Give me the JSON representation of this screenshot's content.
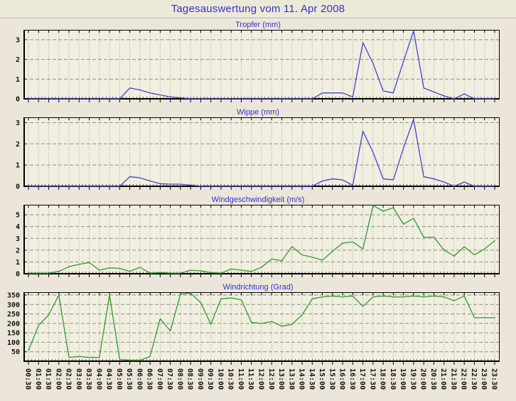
{
  "page_title": "Tagesauswertung vom 11. Apr 2008",
  "colors": {
    "page_bg": "#ebe6d9",
    "header_bg": "#ece9d8",
    "plot_bg": "#f1efe0",
    "title_blue": "#3333cc",
    "line_blue": "#4343c8",
    "line_green": "#2f9b2f",
    "grid_h": "#8f8f87",
    "grid_v": "#a5a29a",
    "axis": "#000000"
  },
  "time_labels": [
    "00:30",
    "01:00",
    "01:30",
    "02:00",
    "02:30",
    "03:00",
    "03:30",
    "04:00",
    "04:30",
    "05:00",
    "05:30",
    "06:00",
    "06:30",
    "07:00",
    "07:30",
    "08:00",
    "08:30",
    "09:00",
    "09:30",
    "10:00",
    "10:30",
    "11:00",
    "11:30",
    "12:00",
    "12:30",
    "13:00",
    "13:30",
    "14:00",
    "14:30",
    "15:00",
    "15:30",
    "16:00",
    "16:30",
    "17:00",
    "17:30",
    "18:00",
    "18:30",
    "19:00",
    "19:30",
    "20:00",
    "20:30",
    "21:00",
    "21:30",
    "22:00",
    "22:30",
    "23:00",
    "23:30"
  ],
  "chart_data": [
    {
      "id": "tropfer",
      "type": "line",
      "title": "Tropfer (mm)",
      "ylabel": "mm",
      "color": "#4343c8",
      "ylim": [
        0,
        3.5
      ],
      "yticks": [
        0,
        1,
        2,
        3
      ],
      "grid": true,
      "x_labels_ref": "time_labels",
      "values": [
        0,
        0,
        0,
        0,
        0,
        0,
        0,
        0,
        0,
        0,
        0.55,
        0.45,
        0.3,
        0.2,
        0.1,
        0.05,
        0,
        0,
        0,
        0,
        0,
        0,
        0,
        0,
        0,
        0,
        0,
        0,
        0,
        0.3,
        0.3,
        0.3,
        0.1,
        2.85,
        1.8,
        0.4,
        0.3,
        1.9,
        3.45,
        0.55,
        0.35,
        0.15,
        0,
        0.25,
        0,
        0,
        0
      ]
    },
    {
      "id": "wippe",
      "type": "line",
      "title": "Wippe (mm)",
      "ylabel": "mm",
      "color": "#4343c8",
      "ylim": [
        0,
        3.25
      ],
      "yticks": [
        0,
        1,
        2,
        3
      ],
      "grid": true,
      "x_labels_ref": "time_labels",
      "values": [
        0,
        0,
        0,
        0,
        0,
        0,
        0,
        0,
        0,
        0,
        0.45,
        0.4,
        0.25,
        0.12,
        0.1,
        0.1,
        0.05,
        0,
        0,
        0,
        0,
        0,
        0,
        0,
        0,
        0,
        0,
        0,
        0,
        0.25,
        0.35,
        0.3,
        0.05,
        2.6,
        1.6,
        0.35,
        0.3,
        1.8,
        3.15,
        0.45,
        0.35,
        0.2,
        0,
        0.2,
        0,
        0,
        0
      ]
    },
    {
      "id": "windgeschwindigkeit",
      "type": "line",
      "title": "Windgeschwindigkeit (m/s)",
      "ylabel": "m/s",
      "color": "#2f9b2f",
      "ylim": [
        0,
        5.85
      ],
      "yticks": [
        0,
        1,
        2,
        3,
        4,
        5
      ],
      "grid": true,
      "x_labels_ref": "time_labels",
      "values": [
        0.05,
        0.05,
        0.05,
        0.2,
        0.6,
        0.8,
        0.95,
        0.3,
        0.5,
        0.45,
        0.2,
        0.55,
        0.05,
        0.1,
        0.05,
        0.05,
        0.3,
        0.25,
        0.1,
        0.05,
        0.4,
        0.3,
        0.2,
        0.55,
        1.25,
        1.1,
        2.3,
        1.6,
        1.4,
        1.15,
        1.9,
        2.6,
        2.7,
        2.1,
        5.8,
        5.3,
        5.6,
        4.2,
        4.7,
        3.1,
        3.1,
        2.0,
        1.5,
        2.3,
        1.6,
        2.1,
        2.8
      ]
    },
    {
      "id": "windrichtung",
      "type": "line",
      "title": "Windrichtung (Grad)",
      "ylabel": "Grad",
      "color": "#2f9b2f",
      "ylim": [
        0,
        365
      ],
      "yticks": [
        50,
        100,
        150,
        200,
        250,
        300,
        350
      ],
      "grid": true,
      "x_labels_ref": "time_labels",
      "values": [
        55,
        190,
        245,
        350,
        20,
        25,
        20,
        20,
        350,
        10,
        5,
        5,
        25,
        225,
        160,
        355,
        360,
        310,
        195,
        330,
        335,
        325,
        205,
        200,
        210,
        185,
        195,
        245,
        330,
        340,
        345,
        340,
        345,
        290,
        340,
        345,
        340,
        340,
        345,
        340,
        345,
        340,
        320,
        345,
        230,
        230,
        230
      ]
    }
  ]
}
